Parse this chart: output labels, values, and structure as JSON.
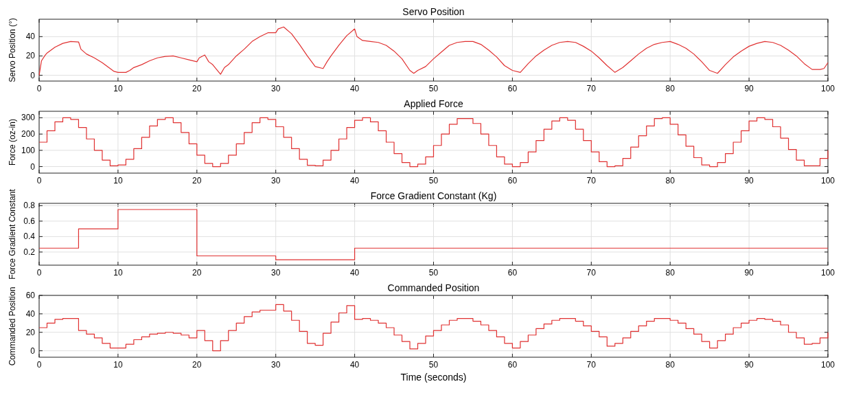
{
  "chart_data": [
    {
      "type": "line",
      "title": "Servo Position",
      "ylabel": "Servo Position (°)",
      "color": "#e03030",
      "xlim": [
        0,
        100
      ],
      "xticks": [
        0,
        10,
        20,
        30,
        40,
        50,
        60,
        70,
        80,
        90,
        100
      ],
      "ylim": [
        -6,
        58
      ],
      "yticks": [
        0,
        20,
        40
      ],
      "grid": true,
      "x": [
        0,
        0.3,
        0.7,
        1,
        2,
        3,
        4,
        5,
        5.3,
        6,
        7,
        8,
        9,
        9.5,
        10,
        11,
        11.5,
        12,
        13,
        14,
        15,
        16,
        17,
        18,
        19,
        20,
        20.3,
        21,
        21.5,
        22,
        23,
        23.5,
        24,
        25,
        26,
        27,
        28,
        29,
        30,
        30.3,
        31,
        32,
        33,
        34,
        35,
        36,
        36.5,
        37,
        38,
        39,
        40,
        40.3,
        41,
        42,
        43,
        44,
        45,
        46,
        47,
        47.5,
        48,
        49,
        50,
        51,
        52,
        53,
        54,
        55,
        56,
        57,
        58,
        59,
        60,
        61,
        62,
        63,
        64,
        65,
        66,
        67,
        68,
        69,
        70,
        71,
        72,
        73,
        74,
        75,
        76,
        77,
        78,
        79,
        80,
        81,
        82,
        83,
        84,
        85,
        86,
        87,
        88,
        89,
        90,
        91,
        92,
        93,
        94,
        95,
        96,
        97,
        98,
        99,
        99.5,
        100
      ],
      "values": [
        0,
        15,
        20,
        23,
        29,
        33,
        35,
        34.5,
        27,
        22,
        18,
        13,
        7,
        4,
        3,
        3,
        5,
        8,
        11,
        15,
        18,
        19.5,
        20,
        18,
        16,
        14,
        18,
        21,
        14,
        11,
        1,
        8,
        11,
        20,
        27,
        35,
        40,
        44,
        44,
        48,
        50,
        43,
        32,
        20,
        9,
        7,
        14,
        20,
        31,
        41,
        48,
        40,
        36,
        35,
        34,
        31,
        25,
        17,
        5,
        2,
        5,
        9,
        17,
        24,
        31,
        34,
        35,
        35,
        32,
        26,
        19,
        10,
        5,
        3,
        12,
        20,
        26,
        31,
        34,
        35,
        34,
        30,
        25,
        18,
        10,
        3,
        8,
        15,
        22,
        28,
        32,
        34,
        35,
        32,
        28,
        22,
        14,
        5,
        2,
        11,
        19,
        25,
        30,
        33,
        35,
        34,
        31,
        26,
        20,
        12,
        6,
        6,
        7,
        13
      ]
    },
    {
      "type": "step",
      "title": "Applied Force",
      "ylabel": "Force (oz-in)",
      "color": "#e03030",
      "xlim": [
        0,
        100
      ],
      "xticks": [
        0,
        10,
        20,
        30,
        40,
        50,
        60,
        70,
        80,
        90,
        100
      ],
      "ylim": [
        -40,
        340
      ],
      "yticks": [
        0,
        100,
        200,
        300
      ],
      "grid": true,
      "x": [
        0,
        1,
        2,
        3,
        4,
        5,
        6,
        7,
        8,
        9,
        10,
        11,
        12,
        13,
        14,
        15,
        16,
        17,
        18,
        19,
        20,
        21,
        22,
        23,
        24,
        25,
        26,
        27,
        28,
        29,
        30,
        31,
        32,
        33,
        34,
        35,
        36,
        37,
        38,
        39,
        40,
        41,
        42,
        43,
        44,
        45,
        46,
        47,
        48,
        49,
        50,
        51,
        52,
        53,
        54,
        55,
        56,
        57,
        58,
        59,
        60,
        61,
        62,
        63,
        64,
        65,
        66,
        67,
        68,
        69,
        70,
        71,
        72,
        73,
        74,
        75,
        76,
        77,
        78,
        79,
        80,
        81,
        82,
        83,
        84,
        85,
        86,
        87,
        88,
        89,
        90,
        91,
        92,
        93,
        94,
        95,
        96,
        97,
        98,
        99,
        100
      ],
      "values": [
        150,
        220,
        275,
        300,
        290,
        240,
        170,
        100,
        40,
        5,
        10,
        45,
        110,
        180,
        250,
        290,
        300,
        270,
        210,
        140,
        70,
        20,
        0,
        20,
        70,
        140,
        210,
        270,
        300,
        290,
        245,
        180,
        110,
        45,
        8,
        5,
        40,
        100,
        170,
        240,
        285,
        300,
        275,
        220,
        150,
        80,
        25,
        0,
        15,
        60,
        130,
        200,
        260,
        295,
        295,
        265,
        200,
        130,
        60,
        15,
        0,
        25,
        90,
        160,
        230,
        280,
        300,
        285,
        230,
        160,
        90,
        30,
        0,
        5,
        50,
        120,
        190,
        250,
        295,
        300,
        260,
        195,
        125,
        55,
        10,
        0,
        25,
        80,
        150,
        220,
        280,
        300,
        290,
        245,
        175,
        105,
        40,
        5,
        5,
        50,
        100
      ]
    },
    {
      "type": "step",
      "title": "Force Gradient Constant (Kg)",
      "ylabel": "Force Gradient Constant",
      "color": "#e03030",
      "xlim": [
        0,
        100
      ],
      "xticks": [
        0,
        10,
        20,
        30,
        40,
        50,
        60,
        70,
        80,
        90,
        100
      ],
      "ylim": [
        0.03,
        0.83
      ],
      "yticks": [
        0.2,
        0.4,
        0.6,
        0.8
      ],
      "grid": true,
      "x": [
        0,
        5,
        10,
        20,
        30,
        40,
        100
      ],
      "values": [
        0.25,
        0.5,
        0.75,
        0.15,
        0.1,
        0.25,
        0.25
      ]
    },
    {
      "type": "step",
      "title": "Commanded Position",
      "ylabel": "Commanded Position",
      "xlabel": "Time (seconds)",
      "color": "#e03030",
      "xlim": [
        0,
        100
      ],
      "xticks": [
        0,
        10,
        20,
        30,
        40,
        50,
        60,
        70,
        80,
        90,
        100
      ],
      "ylim": [
        -7,
        60
      ],
      "yticks": [
        0,
        20,
        40,
        60
      ],
      "grid": true,
      "x": [
        0,
        1,
        2,
        3,
        4,
        5,
        6,
        7,
        8,
        9,
        10,
        11,
        12,
        13,
        14,
        15,
        16,
        17,
        18,
        19,
        20,
        21,
        22,
        23,
        24,
        25,
        26,
        27,
        28,
        29,
        30,
        31,
        32,
        33,
        34,
        35,
        36,
        37,
        38,
        39,
        40,
        41,
        42,
        43,
        44,
        45,
        46,
        47,
        48,
        49,
        50,
        51,
        52,
        53,
        54,
        55,
        56,
        57,
        58,
        59,
        60,
        61,
        62,
        63,
        64,
        65,
        66,
        67,
        68,
        69,
        70,
        71,
        72,
        73,
        74,
        75,
        76,
        77,
        78,
        79,
        80,
        81,
        82,
        83,
        84,
        85,
        86,
        87,
        88,
        89,
        90,
        91,
        92,
        93,
        94,
        95,
        96,
        97,
        98,
        99,
        100
      ],
      "values": [
        25,
        30,
        34,
        35,
        35,
        22,
        18,
        14,
        8,
        3,
        3,
        7,
        12,
        15,
        18,
        19,
        20,
        19,
        17,
        14,
        22,
        11,
        0,
        11,
        22,
        30,
        37,
        42,
        44,
        44,
        50,
        43,
        33,
        21,
        8,
        6,
        19,
        31,
        41,
        49,
        34,
        35,
        33,
        30,
        25,
        17,
        10,
        2,
        8,
        16,
        22,
        28,
        33,
        35,
        35,
        32,
        28,
        22,
        15,
        8,
        3,
        10,
        17,
        24,
        29,
        33,
        35,
        35,
        32,
        27,
        21,
        15,
        5,
        8,
        14,
        21,
        27,
        32,
        35,
        35,
        33,
        30,
        24,
        18,
        10,
        3,
        11,
        18,
        25,
        30,
        33,
        35,
        34,
        32,
        28,
        20,
        14,
        7,
        8,
        14,
        20
      ]
    }
  ]
}
